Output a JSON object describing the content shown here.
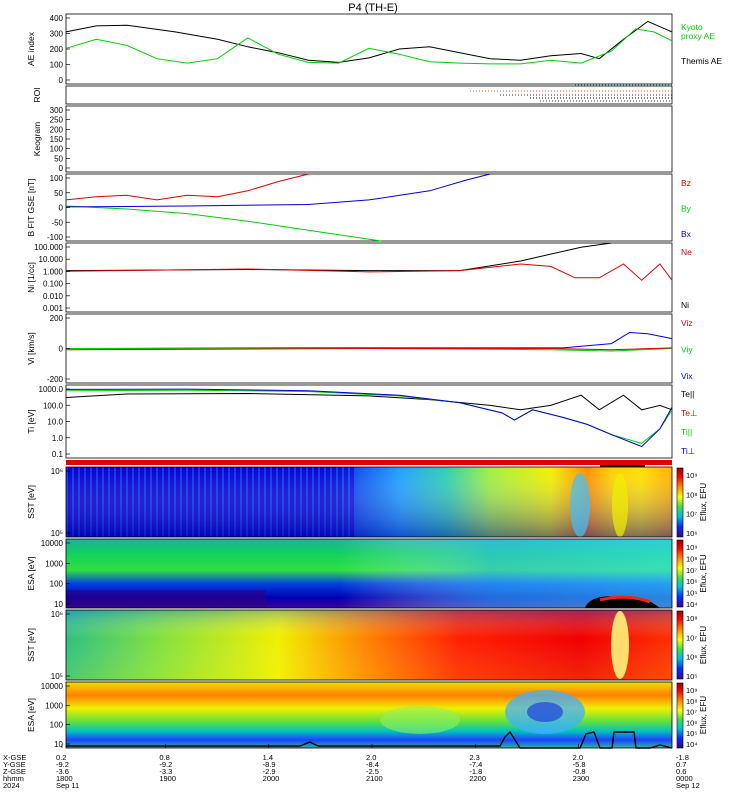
{
  "title": "P4 (TH-E)",
  "colors": {
    "black": "#000000",
    "green": "#00d000",
    "red": "#e00000",
    "blue": "#0000e0",
    "pink": "#ff4080"
  },
  "chart_data": [
    {
      "panel": "ae",
      "type": "line",
      "ylabel": "AE index",
      "ylim": [
        -50,
        420
      ],
      "yticks": [
        "400",
        "300",
        "200",
        "100",
        "0"
      ],
      "legend": [
        {
          "text": "Kyoto",
          "color": "#00d000"
        },
        {
          "text": "proxy AE",
          "color": "#00d000"
        },
        {
          "text": "Themis AE",
          "color": "#000000"
        }
      ],
      "series": [
        {
          "name": "Themis AE",
          "color": "#000000",
          "values": [
            [
              0,
              300
            ],
            [
              0.05,
              340
            ],
            [
              0.1,
              345
            ],
            [
              0.18,
              300
            ],
            [
              0.25,
              250
            ],
            [
              0.3,
              200
            ],
            [
              0.35,
              160
            ],
            [
              0.4,
              110
            ],
            [
              0.45,
              95
            ],
            [
              0.5,
              125
            ],
            [
              0.55,
              185
            ],
            [
              0.6,
              200
            ],
            [
              0.65,
              160
            ],
            [
              0.7,
              120
            ],
            [
              0.75,
              110
            ],
            [
              0.8,
              140
            ],
            [
              0.85,
              155
            ],
            [
              0.88,
              120
            ],
            [
              0.92,
              250
            ],
            [
              0.96,
              370
            ],
            [
              1,
              300
            ]
          ]
        },
        {
          "name": "Kyoto proxy AE",
          "color": "#00d000",
          "values": [
            [
              0,
              190
            ],
            [
              0.05,
              250
            ],
            [
              0.1,
              210
            ],
            [
              0.15,
              120
            ],
            [
              0.2,
              90
            ],
            [
              0.25,
              120
            ],
            [
              0.3,
              260
            ],
            [
              0.35,
              150
            ],
            [
              0.4,
              95
            ],
            [
              0.45,
              90
            ],
            [
              0.5,
              190
            ],
            [
              0.55,
              150
            ],
            [
              0.6,
              100
            ],
            [
              0.65,
              90
            ],
            [
              0.7,
              85
            ],
            [
              0.75,
              85
            ],
            [
              0.8,
              110
            ],
            [
              0.85,
              90
            ],
            [
              0.9,
              170
            ],
            [
              0.94,
              320
            ],
            [
              0.97,
              300
            ],
            [
              1,
              240
            ]
          ]
        }
      ]
    },
    {
      "panel": "roi",
      "type": "line",
      "ylabel": "ROI",
      "yticks": []
    },
    {
      "panel": "keogram",
      "type": "line",
      "ylabel": "Keogram",
      "ylim": [
        0,
        310
      ],
      "yticks": [
        "300",
        "250",
        "200",
        "150",
        "100",
        "50",
        "0"
      ]
    },
    {
      "panel": "bfield",
      "type": "line",
      "ylabel": "B FIT GSE [nT]",
      "ylim": [
        -110,
        110
      ],
      "yticks": [
        "100",
        "50",
        "0",
        "-50",
        "-100"
      ],
      "legend": [
        {
          "text": "Bz",
          "color": "#e00000"
        },
        {
          "text": "By",
          "color": "#00d000"
        },
        {
          "text": "Bx",
          "color": "#0000e0"
        }
      ],
      "series": [
        {
          "name": "Bz",
          "color": "#e00000",
          "values": [
            [
              0,
              25
            ],
            [
              0.05,
              35
            ],
            [
              0.1,
              40
            ],
            [
              0.15,
              25
            ],
            [
              0.2,
              40
            ],
            [
              0.25,
              35
            ],
            [
              0.3,
              55
            ],
            [
              0.35,
              85
            ],
            [
              0.4,
              110
            ]
          ]
        },
        {
          "name": "By",
          "color": "#00d000",
          "values": [
            [
              0,
              5
            ],
            [
              0.1,
              -5
            ],
            [
              0.2,
              -20
            ],
            [
              0.3,
              -45
            ],
            [
              0.4,
              -75
            ],
            [
              0.52,
              -110
            ]
          ]
        },
        {
          "name": "Bx",
          "color": "#0000e0",
          "values": [
            [
              0,
              2
            ],
            [
              0.2,
              5
            ],
            [
              0.4,
              10
            ],
            [
              0.5,
              25
            ],
            [
              0.6,
              55
            ],
            [
              0.66,
              90
            ],
            [
              0.7,
              110
            ]
          ]
        }
      ]
    },
    {
      "panel": "density",
      "type": "line",
      "ylabel": "Ni [1/cc]",
      "ylog": true,
      "ylim": [
        0.001,
        100
      ],
      "yticks": [
        "100.000",
        "10.000",
        "1.000",
        "0.100",
        "0.010",
        "0.001"
      ],
      "legend": [
        {
          "text": "Ne",
          "color": "#e00000"
        },
        {
          "text": "Ni",
          "color": "#000000"
        }
      ],
      "series": [
        {
          "name": "Ni",
          "color": "#000000",
          "values": [
            [
              0,
              1
            ],
            [
              0.3,
              1.2
            ],
            [
              0.5,
              1
            ],
            [
              0.65,
              1
            ],
            [
              0.75,
              5
            ],
            [
              0.85,
              50
            ],
            [
              0.9,
              100
            ]
          ]
        },
        {
          "name": "Ne",
          "color": "#e00000",
          "values": [
            [
              0,
              0.9
            ],
            [
              0.3,
              1.3
            ],
            [
              0.5,
              0.8
            ],
            [
              0.65,
              1
            ],
            [
              0.75,
              3
            ],
            [
              0.8,
              2
            ],
            [
              0.84,
              0.3
            ],
            [
              0.88,
              0.3
            ],
            [
              0.92,
              3
            ],
            [
              0.95,
              0.2
            ],
            [
              0.98,
              3
            ],
            [
              1,
              0.2
            ]
          ]
        }
      ]
    },
    {
      "panel": "velocity",
      "type": "line",
      "ylabel": "Vi [km/s]",
      "ylim": [
        -280,
        280
      ],
      "yticks": [
        "200",
        "0",
        "-200"
      ],
      "legend": [
        {
          "text": "Viz",
          "color": "#e00000"
        },
        {
          "text": "Viy",
          "color": "#00d000"
        },
        {
          "text": "Vix",
          "color": "#0000e0"
        }
      ],
      "series": [
        {
          "name": "Vix",
          "color": "#0000e0",
          "values": [
            [
              0,
              0
            ],
            [
              0.4,
              5
            ],
            [
              0.7,
              5
            ],
            [
              0.82,
              5
            ],
            [
              0.9,
              40
            ],
            [
              0.93,
              130
            ],
            [
              0.96,
              120
            ],
            [
              1,
              80
            ]
          ]
        },
        {
          "name": "Viy",
          "color": "#00d000",
          "values": [
            [
              0,
              0
            ],
            [
              0.5,
              0
            ],
            [
              0.8,
              -10
            ],
            [
              0.9,
              -20
            ],
            [
              1,
              0
            ]
          ]
        },
        {
          "name": "Viz",
          "color": "#e00000",
          "values": [
            [
              0,
              -10
            ],
            [
              0.5,
              0
            ],
            [
              0.8,
              0
            ],
            [
              0.9,
              -10
            ],
            [
              1,
              5
            ]
          ]
        }
      ]
    },
    {
      "panel": "temperature",
      "type": "line",
      "ylabel": "Ti [eV]",
      "ylog": true,
      "ylim": [
        0.05,
        5000
      ],
      "yticks": [
        "1000.0",
        "100.0",
        "10.0",
        "1.0",
        "0.1"
      ],
      "legend": [
        {
          "text": "Te||",
          "color": "#000000"
        },
        {
          "text": "Te⊥",
          "color": "#e00000"
        },
        {
          "text": "Ti||",
          "color": "#00d000"
        },
        {
          "text": "Ti⊥",
          "color": "#0000e0"
        }
      ],
      "series": [
        {
          "name": "Te||",
          "color": "#000000",
          "values": [
            [
              0,
              700
            ],
            [
              0.1,
              1200
            ],
            [
              0.3,
              1300
            ],
            [
              0.5,
              900
            ],
            [
              0.6,
              500
            ],
            [
              0.7,
              200
            ],
            [
              0.75,
              100
            ],
            [
              0.8,
              200
            ],
            [
              0.85,
              1000
            ],
            [
              0.88,
              100
            ],
            [
              0.92,
              1000
            ],
            [
              0.95,
              100
            ],
            [
              0.98,
              200
            ],
            [
              1,
              100
            ]
          ]
        },
        {
          "name": "Ti||",
          "color": "#00d000",
          "values": [
            [
              0,
              2000
            ],
            [
              0.2,
              2200
            ],
            [
              0.4,
              1800
            ],
            [
              0.55,
              900
            ],
            [
              0.65,
              300
            ],
            [
              0.72,
              60
            ],
            [
              0.74,
              20
            ],
            [
              0.77,
              100
            ],
            [
              0.82,
              30
            ],
            [
              0.86,
              10
            ],
            [
              0.9,
              2
            ],
            [
              0.95,
              0.5
            ],
            [
              0.98,
              5
            ],
            [
              1,
              100
            ]
          ]
        },
        {
          "name": "Ti⊥",
          "color": "#0000e0",
          "values": [
            [
              0,
              2500
            ],
            [
              0.2,
              2600
            ],
            [
              0.4,
              2000
            ],
            [
              0.55,
              1000
            ],
            [
              0.65,
              300
            ],
            [
              0.72,
              60
            ],
            [
              0.74,
              20
            ],
            [
              0.77,
              100
            ],
            [
              0.82,
              30
            ],
            [
              0.86,
              10
            ],
            [
              0.9,
              2
            ],
            [
              0.95,
              0.3
            ],
            [
              0.98,
              5
            ],
            [
              1,
              150
            ]
          ]
        }
      ]
    },
    {
      "panel": "sst_e",
      "type": "heatmap",
      "ylabel": "SST [eV]",
      "yticks": [
        "10⁶",
        "10⁵"
      ],
      "colorbar_label": "Eflux, EFU",
      "colorbar_ticks": [
        "10⁹",
        "10⁸",
        "10⁷",
        "10⁶"
      ]
    },
    {
      "panel": "esa_e",
      "type": "heatmap",
      "ylabel": "ESA [eV]",
      "yticks": [
        "10000",
        "1000",
        "100",
        "10"
      ],
      "colorbar_label": "Eflux, EFU",
      "colorbar_ticks": [
        "10⁹",
        "10⁸",
        "10⁷",
        "10⁶",
        "10⁵",
        "10⁴"
      ]
    },
    {
      "panel": "sst_i",
      "type": "heatmap",
      "ylabel": "SST [eV]",
      "yticks": [
        "10⁶",
        "10⁵"
      ],
      "colorbar_label": "Eflux, EFU",
      "colorbar_ticks": [
        "10⁸",
        "10⁷",
        "10⁶",
        "10⁵"
      ]
    },
    {
      "panel": "esa_i",
      "type": "heatmap",
      "ylabel": "ESA [eV]",
      "yticks": [
        "10000",
        "1000",
        "100",
        "10"
      ],
      "colorbar_label": "Eflux, EFU",
      "colorbar_ticks": [
        "10⁹",
        "10⁸",
        "10⁷",
        "10⁶",
        "10⁵",
        "10⁴"
      ]
    }
  ],
  "x_axis": {
    "row_labels": [
      "X-GSE",
      "Y-GSE",
      "Z-GSE",
      "hhmm",
      "2024"
    ],
    "ticks": [
      {
        "x": "0.2",
        "y": "-9.2",
        "z": "-3.6",
        "time": "1800",
        "date": "Sep 11"
      },
      {
        "x": "0.8",
        "y": "-9.2",
        "z": "-3.3",
        "time": "1900",
        "date": ""
      },
      {
        "x": "1.4",
        "y": "-8.9",
        "z": "-2.9",
        "time": "2000",
        "date": ""
      },
      {
        "x": "2.0",
        "y": "-8.4",
        "z": "-2.5",
        "time": "2100",
        "date": ""
      },
      {
        "x": "2.3",
        "y": "-7.4",
        "z": "-1.8",
        "time": "2200",
        "date": ""
      },
      {
        "x": "2.0",
        "y": "-5.8",
        "z": "-0.8",
        "time": "2300",
        "date": ""
      },
      {
        "x": "-1.8",
        "y": "0.7",
        "z": "0.6",
        "time": "0000",
        "date": "Sep 12"
      }
    ]
  }
}
